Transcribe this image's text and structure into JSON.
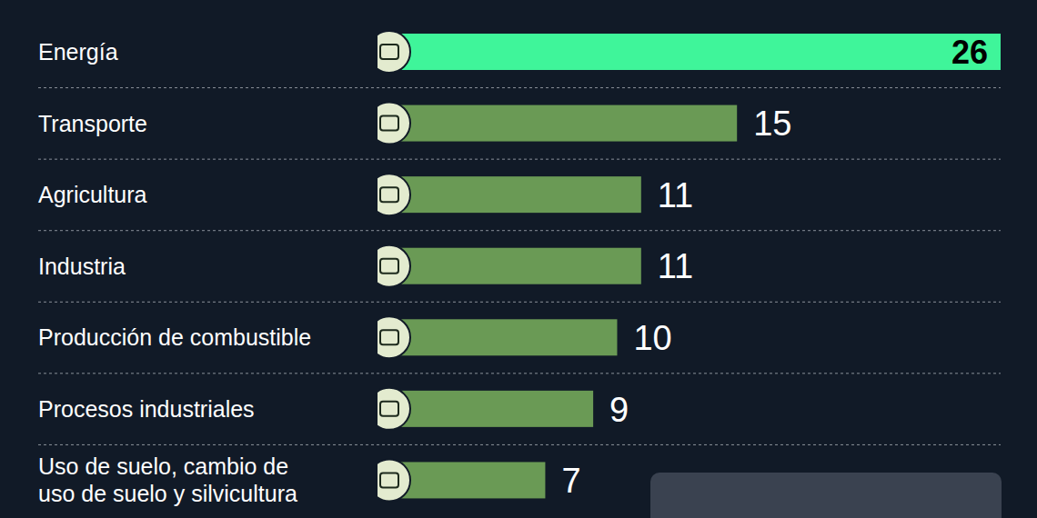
{
  "chart_data": {
    "type": "bar",
    "orientation": "horizontal",
    "categories": [
      "Energía",
      "Transporte",
      "Agricultura",
      "Industria",
      "Producción de combustible",
      "Procesos industriales",
      "Uso de suelo, cambio de uso de suelo y silvicultura"
    ],
    "values": [
      26,
      15,
      11,
      11,
      10,
      9,
      7
    ],
    "colors": [
      "#3ff59a",
      "#6a9a55",
      "#6a9a55",
      "#6a9a55",
      "#6a9a55",
      "#6a9a55",
      "#6a9a55"
    ],
    "xlim": [
      0,
      26
    ],
    "data_labels": true,
    "tick_labels": "y",
    "grid": false
  }
}
